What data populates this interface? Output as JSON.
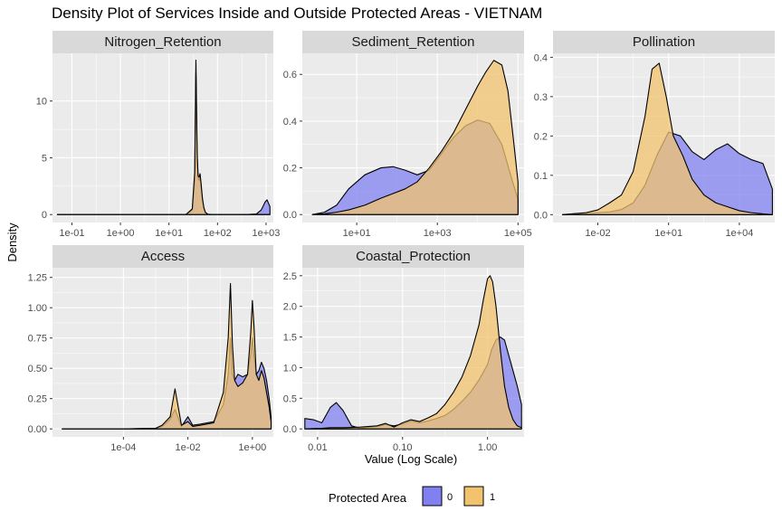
{
  "colors": {
    "panel_bg": "#EBEBEB",
    "strip_bg": "#D9D9D9",
    "grid": "#FFFFFF",
    "fill_0": "#8080F0",
    "fill_1": "#F2C36E",
    "outline": "#000000"
  },
  "chart_data": {
    "type": "area",
    "title": "Density Plot of Services Inside and Outside Protected Areas - VIETNAM",
    "xlabel": "Value (Log Scale)",
    "ylabel": "Density",
    "legend": {
      "title": "Protected Area",
      "placement": "bottom",
      "entries": [
        {
          "key": "0",
          "label": "0"
        },
        {
          "key": "1",
          "label": "1"
        }
      ]
    },
    "panels": [
      {
        "name": "Nitrogen_Retention",
        "xlim_log10": [
          -1.4,
          3.15
        ],
        "ylim": [
          -0.7,
          14.2
        ],
        "xticks": [
          {
            "v": -1,
            "label": "1e-01"
          },
          {
            "v": 0,
            "label": "1e+00"
          },
          {
            "v": 1,
            "label": "1e+01"
          },
          {
            "v": 2,
            "label": "1e+02"
          },
          {
            "v": 3,
            "label": "1e+03"
          }
        ],
        "yticks": [
          {
            "v": 0,
            "label": "0"
          },
          {
            "v": 5,
            "label": "5"
          },
          {
            "v": 10,
            "label": "10"
          }
        ],
        "series": [
          {
            "name": "0",
            "x": [
              -1.3,
              1.35,
              1.48,
              1.53,
              1.555,
              1.58,
              1.6,
              1.62,
              1.64,
              1.66,
              1.69,
              1.72,
              1.75,
              1.8,
              1.9,
              2.2,
              2.6,
              2.8,
              2.9,
              2.98,
              3.02,
              3.05,
              3.08
            ],
            "y": [
              0,
              0,
              0.4,
              3.0,
              12.5,
              5.0,
              3.2,
              3.0,
              3.5,
              2.5,
              1.2,
              0.5,
              0.15,
              0.02,
              0,
              0,
              0,
              0.05,
              0.4,
              1.1,
              1.3,
              1.0,
              0.7
            ]
          },
          {
            "name": "1",
            "x": [
              -1.3,
              1.35,
              1.48,
              1.53,
              1.555,
              1.58,
              1.6,
              1.62,
              1.64,
              1.66,
              1.69,
              1.72,
              1.75,
              1.8,
              1.9,
              2.5,
              3.08
            ],
            "y": [
              0,
              0,
              0.5,
              3.8,
              13.6,
              5.5,
              3.4,
              3.3,
              3.6,
              2.8,
              1.4,
              0.6,
              0.2,
              0.03,
              0,
              0,
              0
            ]
          }
        ]
      },
      {
        "name": "Sediment_Retention",
        "xlim_log10": [
          -0.35,
          5.15
        ],
        "ylim": [
          -0.034,
          0.69
        ],
        "xticks": [
          {
            "v": 1,
            "label": "1e+01"
          },
          {
            "v": 3,
            "label": "1e+03"
          },
          {
            "v": 5,
            "label": "1e+05"
          }
        ],
        "yticks": [
          {
            "v": 0,
            "label": "0.0"
          },
          {
            "v": 0.2,
            "label": "0.2"
          },
          {
            "v": 0.4,
            "label": "0.4"
          },
          {
            "v": 0.6,
            "label": "0.6"
          }
        ],
        "series": [
          {
            "name": "0",
            "x": [
              -0.1,
              0.2,
              0.5,
              0.8,
              1.2,
              1.6,
              1.9,
              2.2,
              2.5,
              2.8,
              3.1,
              3.4,
              3.7,
              4.0,
              4.3,
              4.6,
              4.85,
              5.0
            ],
            "y": [
              0,
              0.01,
              0.04,
              0.11,
              0.17,
              0.2,
              0.205,
              0.19,
              0.17,
              0.19,
              0.26,
              0.33,
              0.38,
              0.405,
              0.39,
              0.3,
              0.15,
              0.065
            ]
          },
          {
            "name": "1",
            "x": [
              -0.1,
              0.2,
              0.5,
              0.8,
              1.2,
              1.6,
              1.9,
              2.2,
              2.5,
              2.8,
              3.1,
              3.4,
              3.7,
              4.0,
              4.2,
              4.4,
              4.6,
              4.75,
              4.9,
              5.0
            ],
            "y": [
              0,
              0.003,
              0.01,
              0.02,
              0.04,
              0.07,
              0.09,
              0.11,
              0.14,
              0.2,
              0.27,
              0.35,
              0.45,
              0.55,
              0.61,
              0.66,
              0.64,
              0.53,
              0.3,
              0.14
            ]
          }
        ]
      },
      {
        "name": "Pollination",
        "xlim_log10": [
          -3.9,
          5.5
        ],
        "ylim": [
          -0.02,
          0.41
        ],
        "xticks": [
          {
            "v": -2,
            "label": "1e-02"
          },
          {
            "v": 1,
            "label": "1e+01"
          },
          {
            "v": 4,
            "label": "1e+04"
          }
        ],
        "yticks": [
          {
            "v": 0,
            "label": "0.0"
          },
          {
            "v": 0.1,
            "label": "0.1"
          },
          {
            "v": 0.2,
            "label": "0.2"
          },
          {
            "v": 0.3,
            "label": "0.3"
          },
          {
            "v": 0.4,
            "label": "0.4"
          }
        ],
        "series": [
          {
            "name": "0",
            "x": [
              -3.5,
              -2.5,
              -1.5,
              -1.0,
              -0.5,
              0,
              0.5,
              1.0,
              1.5,
              2.0,
              2.5,
              3.0,
              3.5,
              4.0,
              4.5,
              5.0,
              5.4
            ],
            "y": [
              0,
              0.003,
              0.007,
              0.013,
              0.03,
              0.075,
              0.15,
              0.21,
              0.2,
              0.16,
              0.14,
              0.165,
              0.18,
              0.155,
              0.14,
              0.13,
              0.065
            ]
          },
          {
            "name": "1",
            "x": [
              -3.5,
              -2.5,
              -2.0,
              -1.5,
              -1.0,
              -0.5,
              0,
              0.3,
              0.6,
              0.9,
              1.2,
              1.6,
              2.0,
              2.5,
              3.0,
              3.5,
              4.0,
              4.5,
              5.0,
              5.4
            ],
            "y": [
              0,
              0.005,
              0.012,
              0.03,
              0.05,
              0.11,
              0.25,
              0.37,
              0.385,
              0.3,
              0.2,
              0.15,
              0.09,
              0.05,
              0.03,
              0.02,
              0.01,
              0.005,
              0.002,
              0
            ]
          }
        ]
      },
      {
        "name": "Access",
        "xlim_log10": [
          -6.2,
          0.65
        ],
        "ylim": [
          -0.066,
          1.33
        ],
        "xticks": [
          {
            "v": -4,
            "label": "1e-04"
          },
          {
            "v": -2,
            "label": "1e-02"
          },
          {
            "v": 0,
            "label": "1e+00"
          }
        ],
        "yticks": [
          {
            "v": 0,
            "label": "0.00"
          },
          {
            "v": 0.25,
            "label": "0.25"
          },
          {
            "v": 0.5,
            "label": "0.50"
          },
          {
            "v": 0.75,
            "label": "0.75"
          },
          {
            "v": 1.0,
            "label": "1.00"
          },
          {
            "v": 1.25,
            "label": "1.25"
          }
        ],
        "series": [
          {
            "name": "0",
            "x": [
              -5.9,
              -4.0,
              -3.0,
              -2.8,
              -2.55,
              -2.4,
              -2.2,
              -2.0,
              -1.85,
              -1.6,
              -1.2,
              -0.9,
              -0.75,
              -0.68,
              -0.62,
              -0.55,
              -0.45,
              -0.3,
              -0.15,
              -0.05,
              0.0,
              0.05,
              0.12,
              0.2,
              0.28,
              0.36,
              0.44,
              0.52,
              0.58
            ],
            "y": [
              0,
              0,
              0.005,
              0.02,
              0.08,
              0.16,
              0.02,
              0.1,
              0.03,
              0.04,
              0.06,
              0.2,
              0.45,
              0.75,
              0.45,
              0.4,
              0.45,
              0.43,
              0.45,
              0.62,
              0.75,
              0.6,
              0.45,
              0.48,
              0.55,
              0.5,
              0.4,
              0.25,
              0.1
            ]
          },
          {
            "name": "1",
            "x": [
              -5.9,
              -4.0,
              -3.0,
              -2.8,
              -2.55,
              -2.4,
              -2.2,
              -2.0,
              -1.85,
              -1.6,
              -1.2,
              -0.9,
              -0.75,
              -0.68,
              -0.62,
              -0.55,
              -0.45,
              -0.3,
              -0.15,
              -0.05,
              0.0,
              0.05,
              0.12,
              0.2,
              0.28,
              0.36,
              0.44,
              0.52,
              0.58
            ],
            "y": [
              0,
              0,
              0.005,
              0.03,
              0.1,
              0.33,
              0.03,
              0.06,
              0.02,
              0.03,
              0.05,
              0.3,
              0.75,
              1.2,
              0.7,
              0.4,
              0.35,
              0.38,
              0.45,
              0.8,
              1.06,
              0.85,
              0.45,
              0.4,
              0.48,
              0.42,
              0.3,
              0.18,
              0.06
            ]
          }
        ]
      },
      {
        "name": "Coastal_Protection",
        "xlim_log10": [
          -2.18,
          0.43
        ],
        "ylim": [
          -0.13,
          2.63
        ],
        "xticks": [
          {
            "v": -2,
            "label": "0.01"
          },
          {
            "v": -1,
            "label": "0.10"
          },
          {
            "v": 0,
            "label": "1.00"
          }
        ],
        "yticks": [
          {
            "v": 0,
            "label": "0.0"
          },
          {
            "v": 0.5,
            "label": "0.5"
          },
          {
            "v": 1.0,
            "label": "1.0"
          },
          {
            "v": 1.5,
            "label": "1.5"
          },
          {
            "v": 2.0,
            "label": "2.0"
          },
          {
            "v": 2.5,
            "label": "2.5"
          }
        ],
        "series": [
          {
            "name": "0",
            "x": [
              -2.15,
              -2.05,
              -1.95,
              -1.85,
              -1.78,
              -1.7,
              -1.6,
              -1.5,
              -1.3,
              -1.2,
              -1.1,
              -1.0,
              -0.9,
              -0.8,
              -0.7,
              -0.6,
              -0.5,
              -0.4,
              -0.3,
              -0.2,
              -0.1,
              0.0,
              0.05,
              0.1,
              0.15,
              0.2,
              0.25,
              0.3,
              0.35,
              0.4
            ],
            "y": [
              0.17,
              0.15,
              0.1,
              0.35,
              0.43,
              0.3,
              0.05,
              0.01,
              0.04,
              0.07,
              0.05,
              0.08,
              0.13,
              0.1,
              0.13,
              0.17,
              0.22,
              0.32,
              0.45,
              0.6,
              0.8,
              1.05,
              1.3,
              1.45,
              1.5,
              1.45,
              1.2,
              0.95,
              0.7,
              0.4
            ]
          },
          {
            "name": "1",
            "x": [
              -2.15,
              -2.05,
              -1.95,
              -1.85,
              -1.7,
              -1.5,
              -1.3,
              -1.2,
              -1.1,
              -1.0,
              -0.9,
              -0.8,
              -0.7,
              -0.6,
              -0.5,
              -0.4,
              -0.3,
              -0.2,
              -0.1,
              -0.05,
              0.0,
              0.03,
              0.06,
              0.1,
              0.15,
              0.2,
              0.25,
              0.3,
              0.35,
              0.4
            ],
            "y": [
              0,
              0.005,
              0.01,
              0.02,
              0.02,
              0.03,
              0.05,
              0.09,
              0.03,
              0.1,
              0.15,
              0.12,
              0.18,
              0.25,
              0.4,
              0.6,
              0.85,
              1.2,
              1.7,
              2.1,
              2.45,
              2.5,
              2.4,
              2.0,
              1.3,
              0.7,
              0.35,
              0.15,
              0.05,
              0.02
            ]
          }
        ]
      }
    ]
  }
}
